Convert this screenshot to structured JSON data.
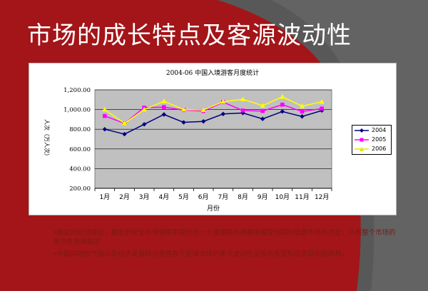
{
  "page": {
    "title": "市场的成长特点及客源波动性",
    "notes": [
      "•稳定的经济增长，稳定的安全环境使得中国作为一个旅游目的地越来越受到国际旅游市场的肯定，从而整个市场的季节性逐渐稳定",
      "•中国内地的气候以及经济发展特点使得各个区域市场的季节波动性呈现商务型和旅游目的型两种。"
    ]
  },
  "colors": {
    "background": "#a31518",
    "plot_area": "#c0c0c0",
    "series_2004": "#000080",
    "series_2005": "#ff00ff",
    "series_2006": "#ffff00"
  },
  "chart_data": {
    "type": "line",
    "title": "2004-06 中国入境游客月度统计",
    "xlabel": "月份",
    "ylabel": "人次（万人次）",
    "categories": [
      "1月",
      "2月",
      "3月",
      "4月",
      "5月",
      "6月",
      "7月",
      "8月",
      "9月",
      "10月",
      "11月",
      "12月"
    ],
    "yticks": [
      "200.00",
      "400.00",
      "600.00",
      "800.00",
      "1,000.00",
      "1,200.00"
    ],
    "ylim": [
      200,
      1200
    ],
    "grid": true,
    "legend_position": "right",
    "series": [
      {
        "name": "2004",
        "marker": "diamond",
        "color": "#000080",
        "values": [
          800,
          750,
          850,
          950,
          870,
          880,
          955,
          965,
          905,
          980,
          930,
          990
        ]
      },
      {
        "name": "2005",
        "marker": "square",
        "color": "#ff00ff",
        "values": [
          935,
          860,
          1020,
          1025,
          995,
          985,
          1075,
          990,
          985,
          1050,
          980,
          1010
        ]
      },
      {
        "name": "2006",
        "marker": "triangle",
        "color": "#ffff00",
        "values": [
          1000,
          860,
          1000,
          1085,
          1000,
          995,
          1080,
          1105,
          1040,
          1130,
          1035,
          1080
        ]
      }
    ]
  }
}
